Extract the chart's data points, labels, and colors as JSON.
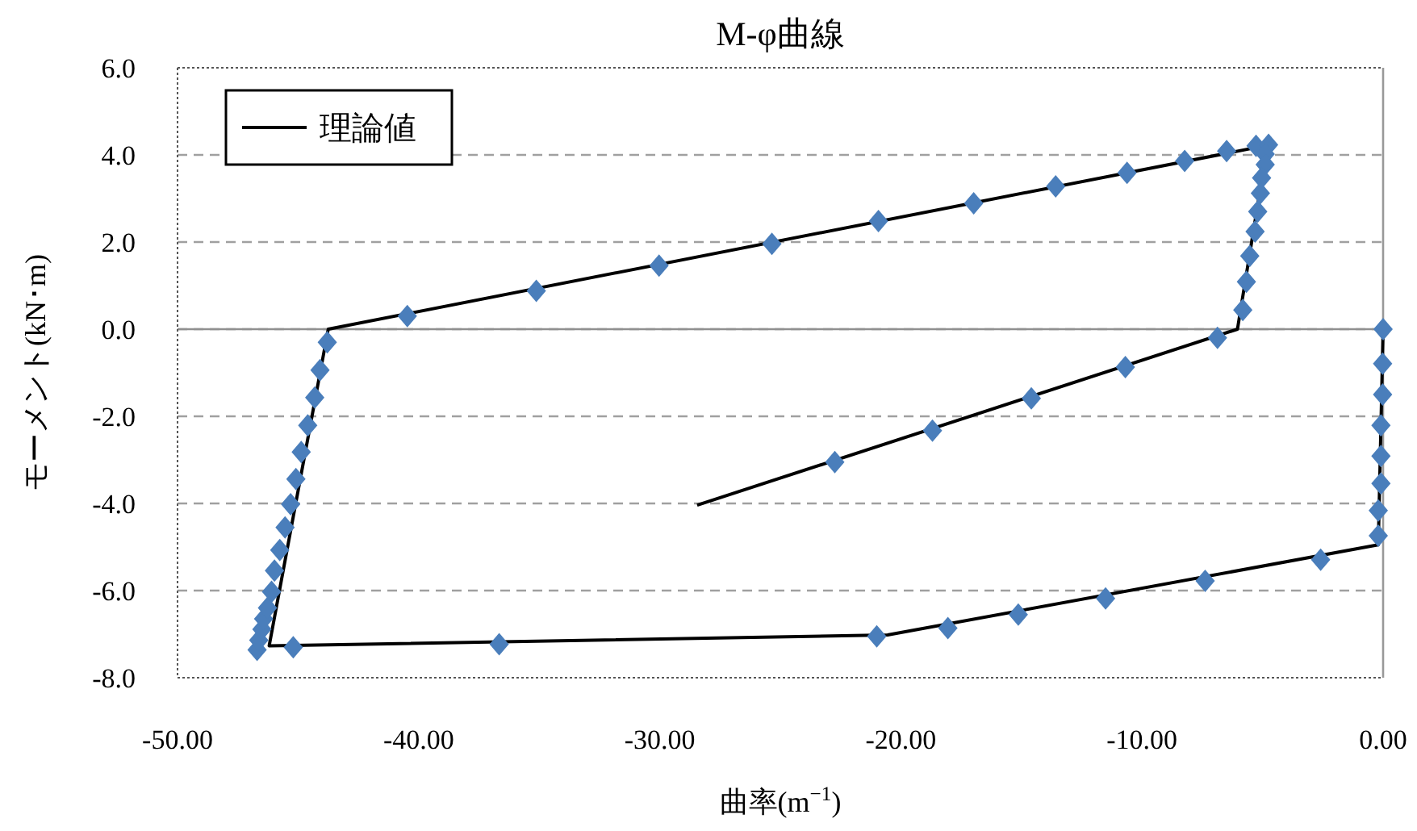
{
  "chart_data": {
    "type": "scatter",
    "title": "M-φ曲線",
    "xlabel": "曲率(m$^{−1}$)",
    "ylabel": "モーメント(kN･m)",
    "xlim": [
      -50,
      0
    ],
    "ylim": [
      -8,
      6
    ],
    "xticks": [
      {
        "value": -50,
        "label": "-50.00"
      },
      {
        "value": -40,
        "label": "-40.00"
      },
      {
        "value": -30,
        "label": "-30.00"
      },
      {
        "value": -20,
        "label": "-20.00"
      },
      {
        "value": -10,
        "label": "-10.00"
      },
      {
        "value": 0,
        "label": "0.00"
      }
    ],
    "yticks": [
      {
        "value": -8,
        "label": "-8.0"
      },
      {
        "value": -6,
        "label": "-6.0"
      },
      {
        "value": -4,
        "label": "-4.0"
      },
      {
        "value": -2,
        "label": "-2.0"
      },
      {
        "value": 0,
        "label": "0.0"
      },
      {
        "value": 2,
        "label": "2.0"
      },
      {
        "value": 4,
        "label": "4.0"
      },
      {
        "value": 6,
        "label": "6.0"
      }
    ],
    "grid": "y",
    "legend": "top left",
    "ref_lines": [
      {
        "axis": "y",
        "value": 0,
        "color": "#909090",
        "line_style": "solid"
      }
    ],
    "series": [
      {
        "marker": "diamond",
        "color": "#4a7ebb",
        "x": [
          0.0,
          -0.02,
          -0.02,
          -0.09,
          -0.09,
          -0.09,
          -0.2,
          -0.2,
          -2.59,
          -7.38,
          -11.51,
          -15.13,
          -18.05,
          -21.0,
          -36.66,
          -45.2,
          -46.7,
          -46.63,
          -46.5,
          -46.43,
          -46.27,
          -46.1,
          -45.98,
          -45.76,
          -45.54,
          -45.31,
          -45.09,
          -44.87,
          -44.6,
          -44.31,
          -44.09,
          -43.79,
          -40.47,
          -35.12,
          -30.03,
          -25.35,
          -20.93,
          -16.98,
          -13.58,
          -10.62,
          -8.23,
          -6.49,
          -5.27,
          -4.75,
          -4.89,
          -4.89,
          -5.04,
          -5.09,
          -5.2,
          -5.31,
          -5.53,
          -5.67,
          -5.82,
          -6.87,
          -10.69,
          -14.59,
          -18.69,
          -22.74
        ],
        "values": [
          0.0,
          -0.79,
          -1.5,
          -2.21,
          -2.91,
          -3.54,
          -4.16,
          -4.74,
          -5.29,
          -5.78,
          -6.18,
          -6.55,
          -6.86,
          -7.05,
          -7.23,
          -7.3,
          -7.36,
          -7.14,
          -6.89,
          -6.65,
          -6.4,
          -6.03,
          -5.54,
          -5.07,
          -4.55,
          -4.02,
          -3.44,
          -2.82,
          -2.21,
          -1.57,
          -0.94,
          -0.3,
          0.3,
          0.88,
          1.46,
          1.96,
          2.48,
          2.89,
          3.28,
          3.59,
          3.86,
          4.09,
          4.21,
          4.23,
          4.02,
          3.78,
          3.47,
          3.12,
          2.7,
          2.24,
          1.68,
          1.09,
          0.44,
          -0.2,
          -0.87,
          -1.59,
          -2.33,
          -3.05
        ]
      },
      {
        "type": "line",
        "name": "理論値",
        "color": "#000000",
        "marker": "none",
        "line_style": "solid",
        "x": [
          0.0,
          -0.2,
          -20.55,
          -46.2,
          -43.75,
          -4.8,
          -6.04,
          -28.45
        ],
        "values": [
          0.0,
          -4.95,
          -7.02,
          -7.27,
          0.0,
          4.22,
          0.0,
          -4.04
        ]
      }
    ]
  }
}
